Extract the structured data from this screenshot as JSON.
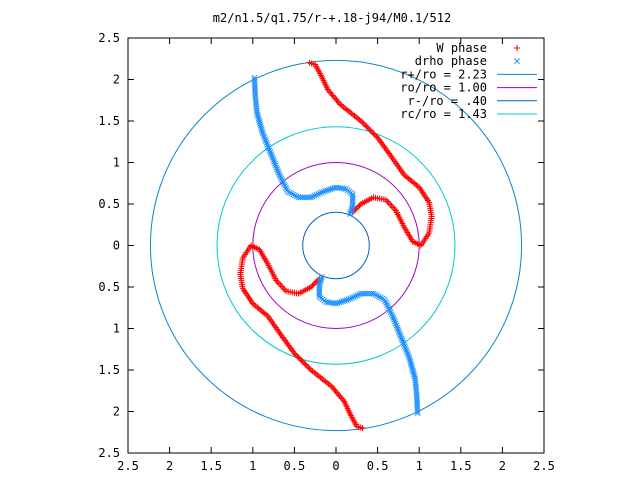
{
  "chart_data": {
    "type": "scatter",
    "title": "m2/n1.5/q1.75/r-+.18-j94/M0.1/512",
    "xlabel": "",
    "ylabel": "",
    "xlim": [
      -2.5,
      2.5
    ],
    "ylim": [
      -2.5,
      2.5
    ],
    "grid": false,
    "legend_position": "top-right",
    "x_ticks": [
      {
        "value": -2.5,
        "label": "2.5"
      },
      {
        "value": -2,
        "label": "2"
      },
      {
        "value": -1.5,
        "label": "1.5"
      },
      {
        "value": -1,
        "label": "1"
      },
      {
        "value": -0.5,
        "label": "0.5"
      },
      {
        "value": 0,
        "label": "0"
      },
      {
        "value": 0.5,
        "label": "0.5"
      },
      {
        "value": 1,
        "label": "1"
      },
      {
        "value": 1.5,
        "label": "1.5"
      },
      {
        "value": 2,
        "label": "2"
      },
      {
        "value": 2.5,
        "label": "2.5"
      }
    ],
    "y_ticks": [
      {
        "value": 2.5,
        "label": "2.5"
      },
      {
        "value": 2,
        "label": "2"
      },
      {
        "value": 1.5,
        "label": "1.5"
      },
      {
        "value": 1,
        "label": "1"
      },
      {
        "value": 0.5,
        "label": "0.5"
      },
      {
        "value": 0,
        "label": "0"
      },
      {
        "value": -0.5,
        "label": "0.5"
      },
      {
        "value": -1,
        "label": "1"
      },
      {
        "value": -1.5,
        "label": "1.5"
      },
      {
        "value": -2,
        "label": "2"
      },
      {
        "value": -2.5,
        "label": "2.5"
      }
    ],
    "circles": [
      {
        "name": "r+/ro = 2.23",
        "radius": 2.23,
        "color": "#0b84c8"
      },
      {
        "name": "ro/ro = 1.00",
        "radius": 1.0,
        "color": "#a000c0"
      },
      {
        "name": "r-/ro = .40",
        "radius": 0.4,
        "color": "#0060c0"
      },
      {
        "name": "rc/ro = 1.43",
        "radius": 1.43,
        "color": "#00c8c8"
      }
    ],
    "series": [
      {
        "name": "W phase",
        "marker": "plus",
        "color": "#ff0000",
        "branches": [
          [
            [
              -0.32,
              2.2
            ],
            [
              -0.25,
              2.18
            ],
            [
              -0.18,
              2.05
            ],
            [
              -0.1,
              1.88
            ],
            [
              0.05,
              1.7
            ],
            [
              0.3,
              1.5
            ],
            [
              0.5,
              1.3
            ],
            [
              0.68,
              1.05
            ],
            [
              0.82,
              0.85
            ],
            [
              1.0,
              0.7
            ],
            [
              1.12,
              0.52
            ],
            [
              1.15,
              0.35
            ],
            [
              1.12,
              0.15
            ],
            [
              1.02,
              0.0
            ],
            [
              0.92,
              0.05
            ],
            [
              0.82,
              0.22
            ],
            [
              0.72,
              0.42
            ],
            [
              0.6,
              0.55
            ],
            [
              0.45,
              0.58
            ],
            [
              0.3,
              0.5
            ],
            [
              0.2,
              0.4
            ]
          ],
          [
            [
              0.32,
              -2.2
            ],
            [
              0.25,
              -2.18
            ],
            [
              0.18,
              -2.05
            ],
            [
              0.1,
              -1.88
            ],
            [
              -0.05,
              -1.7
            ],
            [
              -0.3,
              -1.5
            ],
            [
              -0.5,
              -1.3
            ],
            [
              -0.68,
              -1.05
            ],
            [
              -0.82,
              -0.85
            ],
            [
              -1.0,
              -0.7
            ],
            [
              -1.12,
              -0.52
            ],
            [
              -1.15,
              -0.35
            ],
            [
              -1.12,
              -0.15
            ],
            [
              -1.02,
              0.0
            ],
            [
              -0.92,
              -0.05
            ],
            [
              -0.82,
              -0.22
            ],
            [
              -0.72,
              -0.42
            ],
            [
              -0.6,
              -0.55
            ],
            [
              -0.45,
              -0.58
            ],
            [
              -0.3,
              -0.5
            ],
            [
              -0.2,
              -0.4
            ]
          ]
        ]
      },
      {
        "name": "drho phase",
        "marker": "cross",
        "color": "#1e90ff",
        "branches": [
          [
            [
              -0.98,
              2.02
            ],
            [
              -0.97,
              1.8
            ],
            [
              -0.95,
              1.6
            ],
            [
              -0.88,
              1.35
            ],
            [
              -0.78,
              1.1
            ],
            [
              -0.68,
              0.85
            ],
            [
              -0.58,
              0.65
            ],
            [
              -0.45,
              0.58
            ],
            [
              -0.3,
              0.58
            ],
            [
              -0.15,
              0.65
            ],
            [
              0.0,
              0.7
            ],
            [
              0.12,
              0.68
            ],
            [
              0.2,
              0.62
            ],
            [
              0.2,
              0.48
            ],
            [
              0.17,
              0.38
            ]
          ],
          [
            [
              0.98,
              -2.02
            ],
            [
              0.97,
              -1.8
            ],
            [
              0.95,
              -1.6
            ],
            [
              0.88,
              -1.35
            ],
            [
              0.78,
              -1.1
            ],
            [
              0.68,
              -0.85
            ],
            [
              0.58,
              -0.65
            ],
            [
              0.45,
              -0.58
            ],
            [
              0.3,
              -0.58
            ],
            [
              0.15,
              -0.65
            ],
            [
              0.0,
              -0.7
            ],
            [
              -0.12,
              -0.68
            ],
            [
              -0.2,
              -0.62
            ],
            [
              -0.2,
              -0.48
            ],
            [
              -0.17,
              -0.38
            ]
          ]
        ]
      }
    ]
  }
}
